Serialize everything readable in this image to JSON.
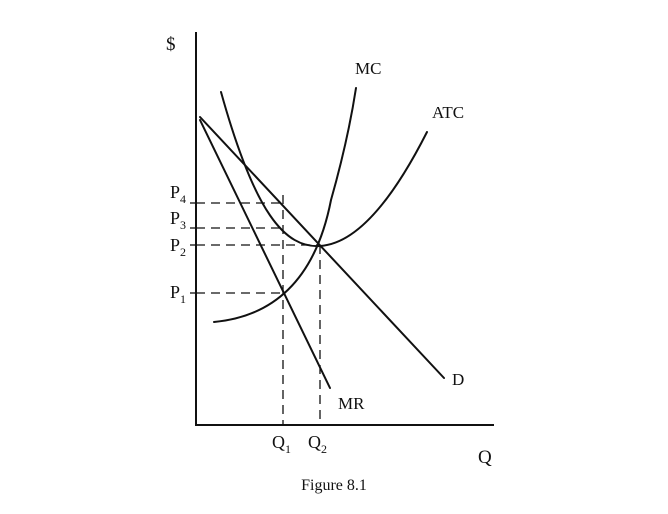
{
  "figure": {
    "caption": "Figure 8.1",
    "y_axis_label": "$",
    "x_axis_label": "Q"
  },
  "curves": {
    "mc": "MC",
    "atc": "ATC",
    "demand": "D",
    "mr": "MR"
  },
  "price_levels": [
    {
      "main": "P",
      "sub": "4"
    },
    {
      "main": "P",
      "sub": "3"
    },
    {
      "main": "P",
      "sub": "2"
    },
    {
      "main": "P",
      "sub": "1"
    }
  ],
  "quantity_levels": [
    {
      "main": "Q",
      "sub": "1"
    },
    {
      "main": "Q",
      "sub": "2"
    }
  ]
}
